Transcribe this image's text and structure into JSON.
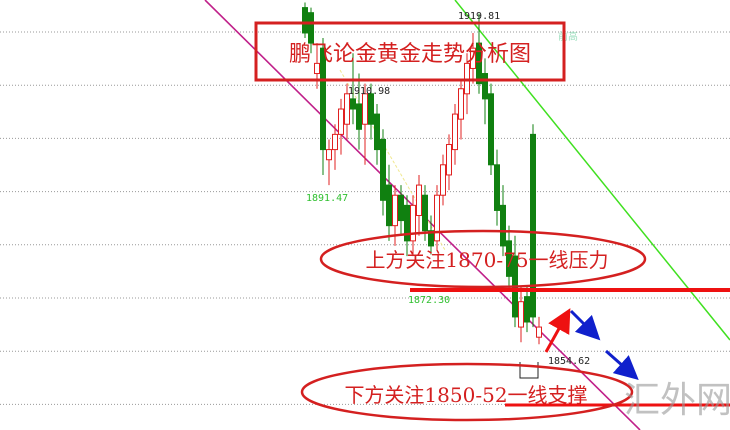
{
  "chart_data": {
    "type": "candlestick",
    "title": "鹏飞论金黄金走势分析图",
    "ylim": [
      1837.7,
      1922.5
    ],
    "grid": true,
    "candles": [
      [
        1921,
        1922,
        1915,
        1916
      ],
      [
        1920,
        1921,
        1912,
        1914
      ],
      [
        1908,
        1914,
        1905,
        1910
      ],
      [
        1913,
        1915,
        1888,
        1893
      ],
      [
        1891,
        1895,
        1886,
        1893
      ],
      [
        1893,
        1898,
        1889,
        1896
      ],
      [
        1896,
        1903,
        1892,
        1901
      ],
      [
        1898,
        1906,
        1895,
        1904
      ],
      [
        1903,
        1912,
        1898,
        1901
      ],
      [
        1902,
        1908,
        1893,
        1897
      ],
      [
        1898,
        1906,
        1890,
        1904
      ],
      [
        1904,
        1906,
        1895,
        1898
      ],
      [
        1900,
        1902,
        1890,
        1893
      ],
      [
        1895,
        1897,
        1880,
        1883
      ],
      [
        1886,
        1890,
        1875,
        1878
      ],
      [
        1878,
        1886,
        1874,
        1884
      ],
      [
        1884,
        1886,
        1876,
        1879
      ],
      [
        1882,
        1884,
        1872,
        1875
      ],
      [
        1875,
        1884,
        1872,
        1882
      ],
      [
        1880,
        1888,
        1876,
        1886
      ],
      [
        1884,
        1886,
        1875,
        1877
      ],
      [
        1877,
        1880,
        1872.3,
        1874
      ],
      [
        1875,
        1886,
        1873,
        1884
      ],
      [
        1884,
        1892,
        1882,
        1890
      ],
      [
        1888,
        1896,
        1885,
        1894
      ],
      [
        1893,
        1902,
        1890,
        1900
      ],
      [
        1899,
        1907,
        1895,
        1905
      ],
      [
        1904,
        1912,
        1900,
        1910
      ],
      [
        1909,
        1916,
        1906,
        1913
      ],
      [
        1914,
        1919.81,
        1904,
        1906
      ],
      [
        1908,
        1911,
        1898,
        1903
      ],
      [
        1904,
        1906,
        1888,
        1890
      ],
      [
        1890,
        1893,
        1878,
        1881
      ],
      [
        1882,
        1886,
        1872,
        1874
      ],
      [
        1875,
        1878,
        1866,
        1868
      ],
      [
        1872,
        1876,
        1858,
        1860
      ],
      [
        1858,
        1866,
        1855,
        1863
      ],
      [
        1864,
        1866,
        1857,
        1859
      ],
      [
        1896,
        1898,
        1858,
        1860
      ],
      [
        1856,
        1860,
        1854.62,
        1858
      ]
    ],
    "candle_format": [
      "open",
      "high",
      "low",
      "close"
    ],
    "price_labels": [
      "1919.81",
      "1910.98",
      "1891.47",
      "1872.30",
      "1854.62"
    ],
    "marker_label": "前高",
    "annotations": {
      "resistance": "上方关注1870-75一线压力",
      "support": "下方关注1850-52一线支撑"
    },
    "resistance_level": 1867,
    "support_level": 1845,
    "colors": {
      "up": "#e02020",
      "down": "#108010",
      "annotation": "#d42020",
      "trend_magenta": "#c0208a",
      "trend_green": "#40e020",
      "arrow_up": "#ee1111",
      "arrow_down": "#1020cc"
    }
  },
  "watermark": "汇外网"
}
